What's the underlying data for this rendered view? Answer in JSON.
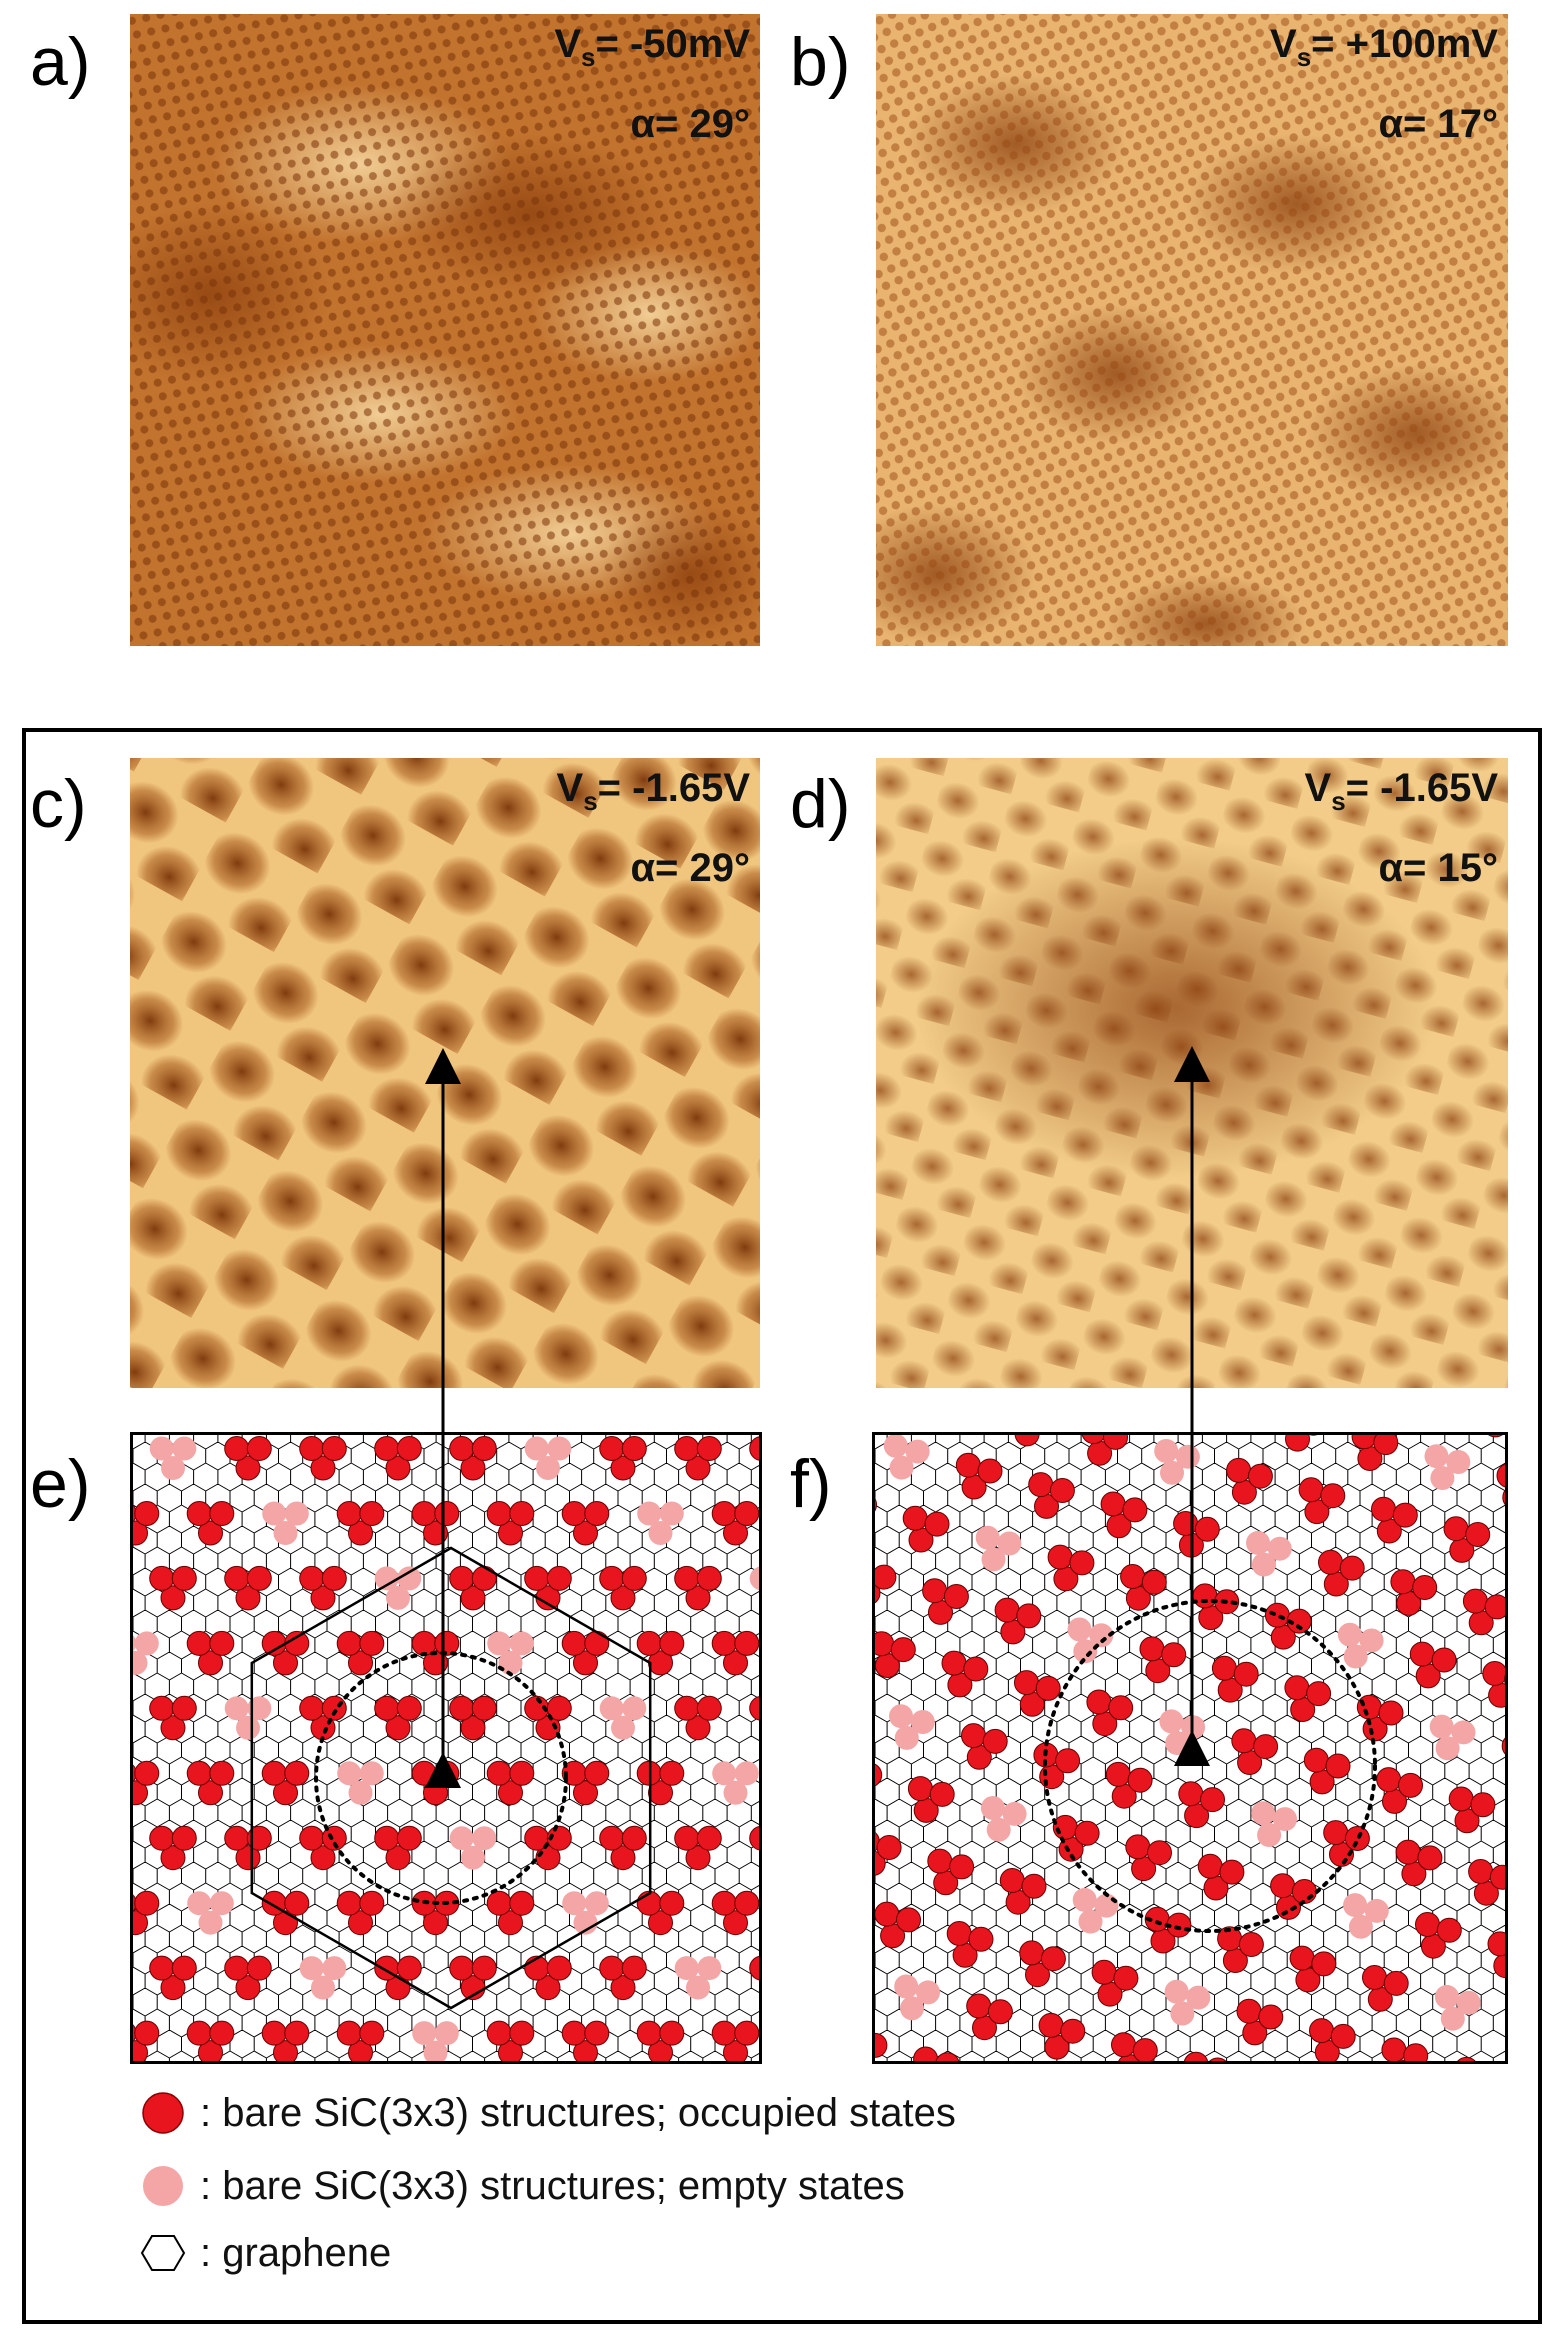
{
  "panels": {
    "a": {
      "letter": "a)",
      "voltage_prefix": "V",
      "voltage_sub": "s",
      "voltage_value": "= -50mV",
      "angle": "α= 29°"
    },
    "b": {
      "letter": "b)",
      "voltage_prefix": "V",
      "voltage_sub": "s",
      "voltage_value": "= +100mV",
      "angle": "α= 17°"
    },
    "c": {
      "letter": "c)",
      "voltage_prefix": "V",
      "voltage_sub": "s",
      "voltage_value": "= -1.65V",
      "angle": "α= 29°"
    },
    "d": {
      "letter": "d)",
      "voltage_prefix": "V",
      "voltage_sub": "s",
      "voltage_value": "= -1.65V",
      "angle": "α= 15°"
    },
    "e": {
      "letter": "e)"
    },
    "f": {
      "letter": "f)"
    }
  },
  "legend": {
    "occupied": ": bare SiC(3x3) structures; occupied states",
    "empty": ": bare SiC(3x3) structures; empty states",
    "graphene": ": graphene"
  },
  "colors": {
    "occupied": "#e8141e",
    "empty": "#f4a6a6",
    "stm_dark": "#8a3d0c",
    "stm_mid": "#d08a3c",
    "stm_light": "#f8e0a8"
  },
  "icons": [
    "graphene-hexagon-icon",
    "occupied-dot-icon",
    "empty-dot-icon",
    "arrow-icon"
  ]
}
